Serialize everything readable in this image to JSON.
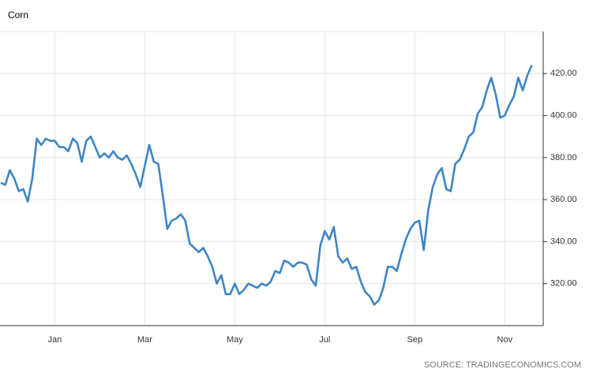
{
  "chart_data": {
    "type": "line",
    "title": "Corn",
    "source": "SOURCE: TRADINGECONOMICS.COM",
    "categories": [
      null,
      null,
      null,
      null,
      null,
      null,
      null,
      null,
      null,
      null,
      null,
      null,
      "Jan",
      null,
      null,
      null,
      null,
      null,
      null,
      null,
      null,
      null,
      null,
      null,
      null,
      null,
      null,
      null,
      null,
      null,
      null,
      null,
      "Mar",
      null,
      null,
      null,
      null,
      null,
      null,
      null,
      null,
      null,
      null,
      null,
      null,
      null,
      null,
      null,
      null,
      null,
      null,
      null,
      "May",
      null,
      null,
      null,
      null,
      null,
      null,
      null,
      null,
      null,
      null,
      null,
      null,
      null,
      null,
      null,
      null,
      null,
      null,
      null,
      "Jul",
      null,
      null,
      null,
      null,
      null,
      null,
      null,
      null,
      null,
      null,
      null,
      null,
      null,
      null,
      null,
      null,
      null,
      null,
      null,
      "Sep",
      null,
      null,
      null,
      null,
      null,
      null,
      null,
      null,
      null,
      null,
      null,
      null,
      null,
      null,
      null,
      null,
      null,
      null,
      null,
      "Nov",
      null,
      null,
      null,
      null,
      null,
      null
    ],
    "values": [
      368,
      367,
      374,
      370,
      364,
      365,
      359,
      370,
      389,
      386,
      389,
      388,
      388,
      385,
      385,
      383,
      389,
      387,
      378,
      388,
      390,
      385,
      380,
      382,
      380,
      383,
      380,
      379,
      381,
      377,
      372,
      366,
      376,
      386,
      378,
      377,
      362,
      346,
      350,
      351,
      353,
      350,
      339,
      337,
      335,
      337,
      333,
      328,
      320,
      324,
      315,
      315,
      320,
      315,
      317,
      320,
      319,
      318,
      320,
      319,
      321,
      326,
      325,
      331,
      330,
      328,
      330,
      330,
      329,
      322,
      319,
      338,
      345,
      341,
      347,
      333,
      330,
      332,
      327,
      328,
      321,
      316,
      314,
      310,
      312,
      318,
      328,
      328,
      326,
      334,
      341,
      346,
      349,
      350,
      336,
      355,
      366,
      372,
      375,
      365,
      364,
      377,
      379,
      384,
      390,
      392,
      401,
      404,
      412,
      418,
      410,
      399,
      400,
      405,
      409,
      418,
      412,
      419,
      424
    ],
    "color": "#3d85c6",
    "ylim": [
      300,
      440
    ],
    "yticks": [
      {
        "value": 320,
        "label": "320.00"
      },
      {
        "value": 340,
        "label": "340.00"
      },
      {
        "value": 360,
        "label": "360.00"
      },
      {
        "value": 380,
        "label": "380.00"
      },
      {
        "value": 400,
        "label": "400.00"
      },
      {
        "value": 420,
        "label": "420.00"
      }
    ],
    "grid": true
  }
}
